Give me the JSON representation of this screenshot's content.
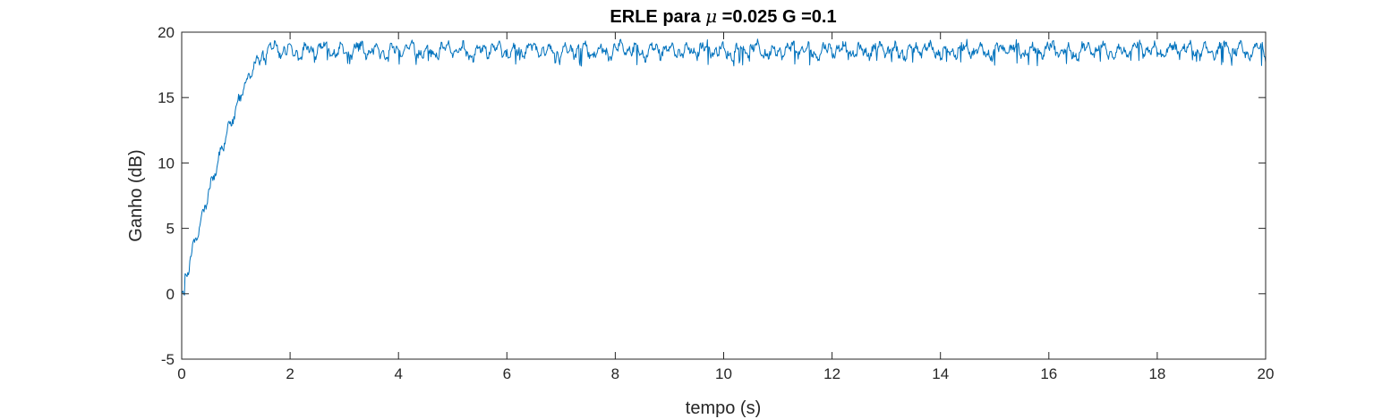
{
  "chart_data": {
    "type": "line",
    "title": {
      "prefix": "ERLE para ",
      "symbol": "μ",
      "suffix": " =0.025 G =0.1"
    },
    "xlabel": "tempo (s)",
    "ylabel": "Ganho (dB)",
    "xlim": [
      0,
      20
    ],
    "ylim": [
      -5,
      20
    ],
    "xticks": [
      0,
      2,
      4,
      6,
      8,
      10,
      12,
      14,
      16,
      18,
      20
    ],
    "yticks": [
      -5,
      0,
      5,
      10,
      15,
      20
    ],
    "grid": false,
    "legend": "none",
    "series": [
      {
        "color": "#0072BD",
        "shape": {
          "start": [
            0,
            0
          ],
          "ramp_end": [
            1.5,
            18.3
          ],
          "steady_mean": 18.6,
          "fluctuation_min": 17.4,
          "fluctuation_max": 19.5,
          "t_end": 20
        }
      }
    ]
  }
}
